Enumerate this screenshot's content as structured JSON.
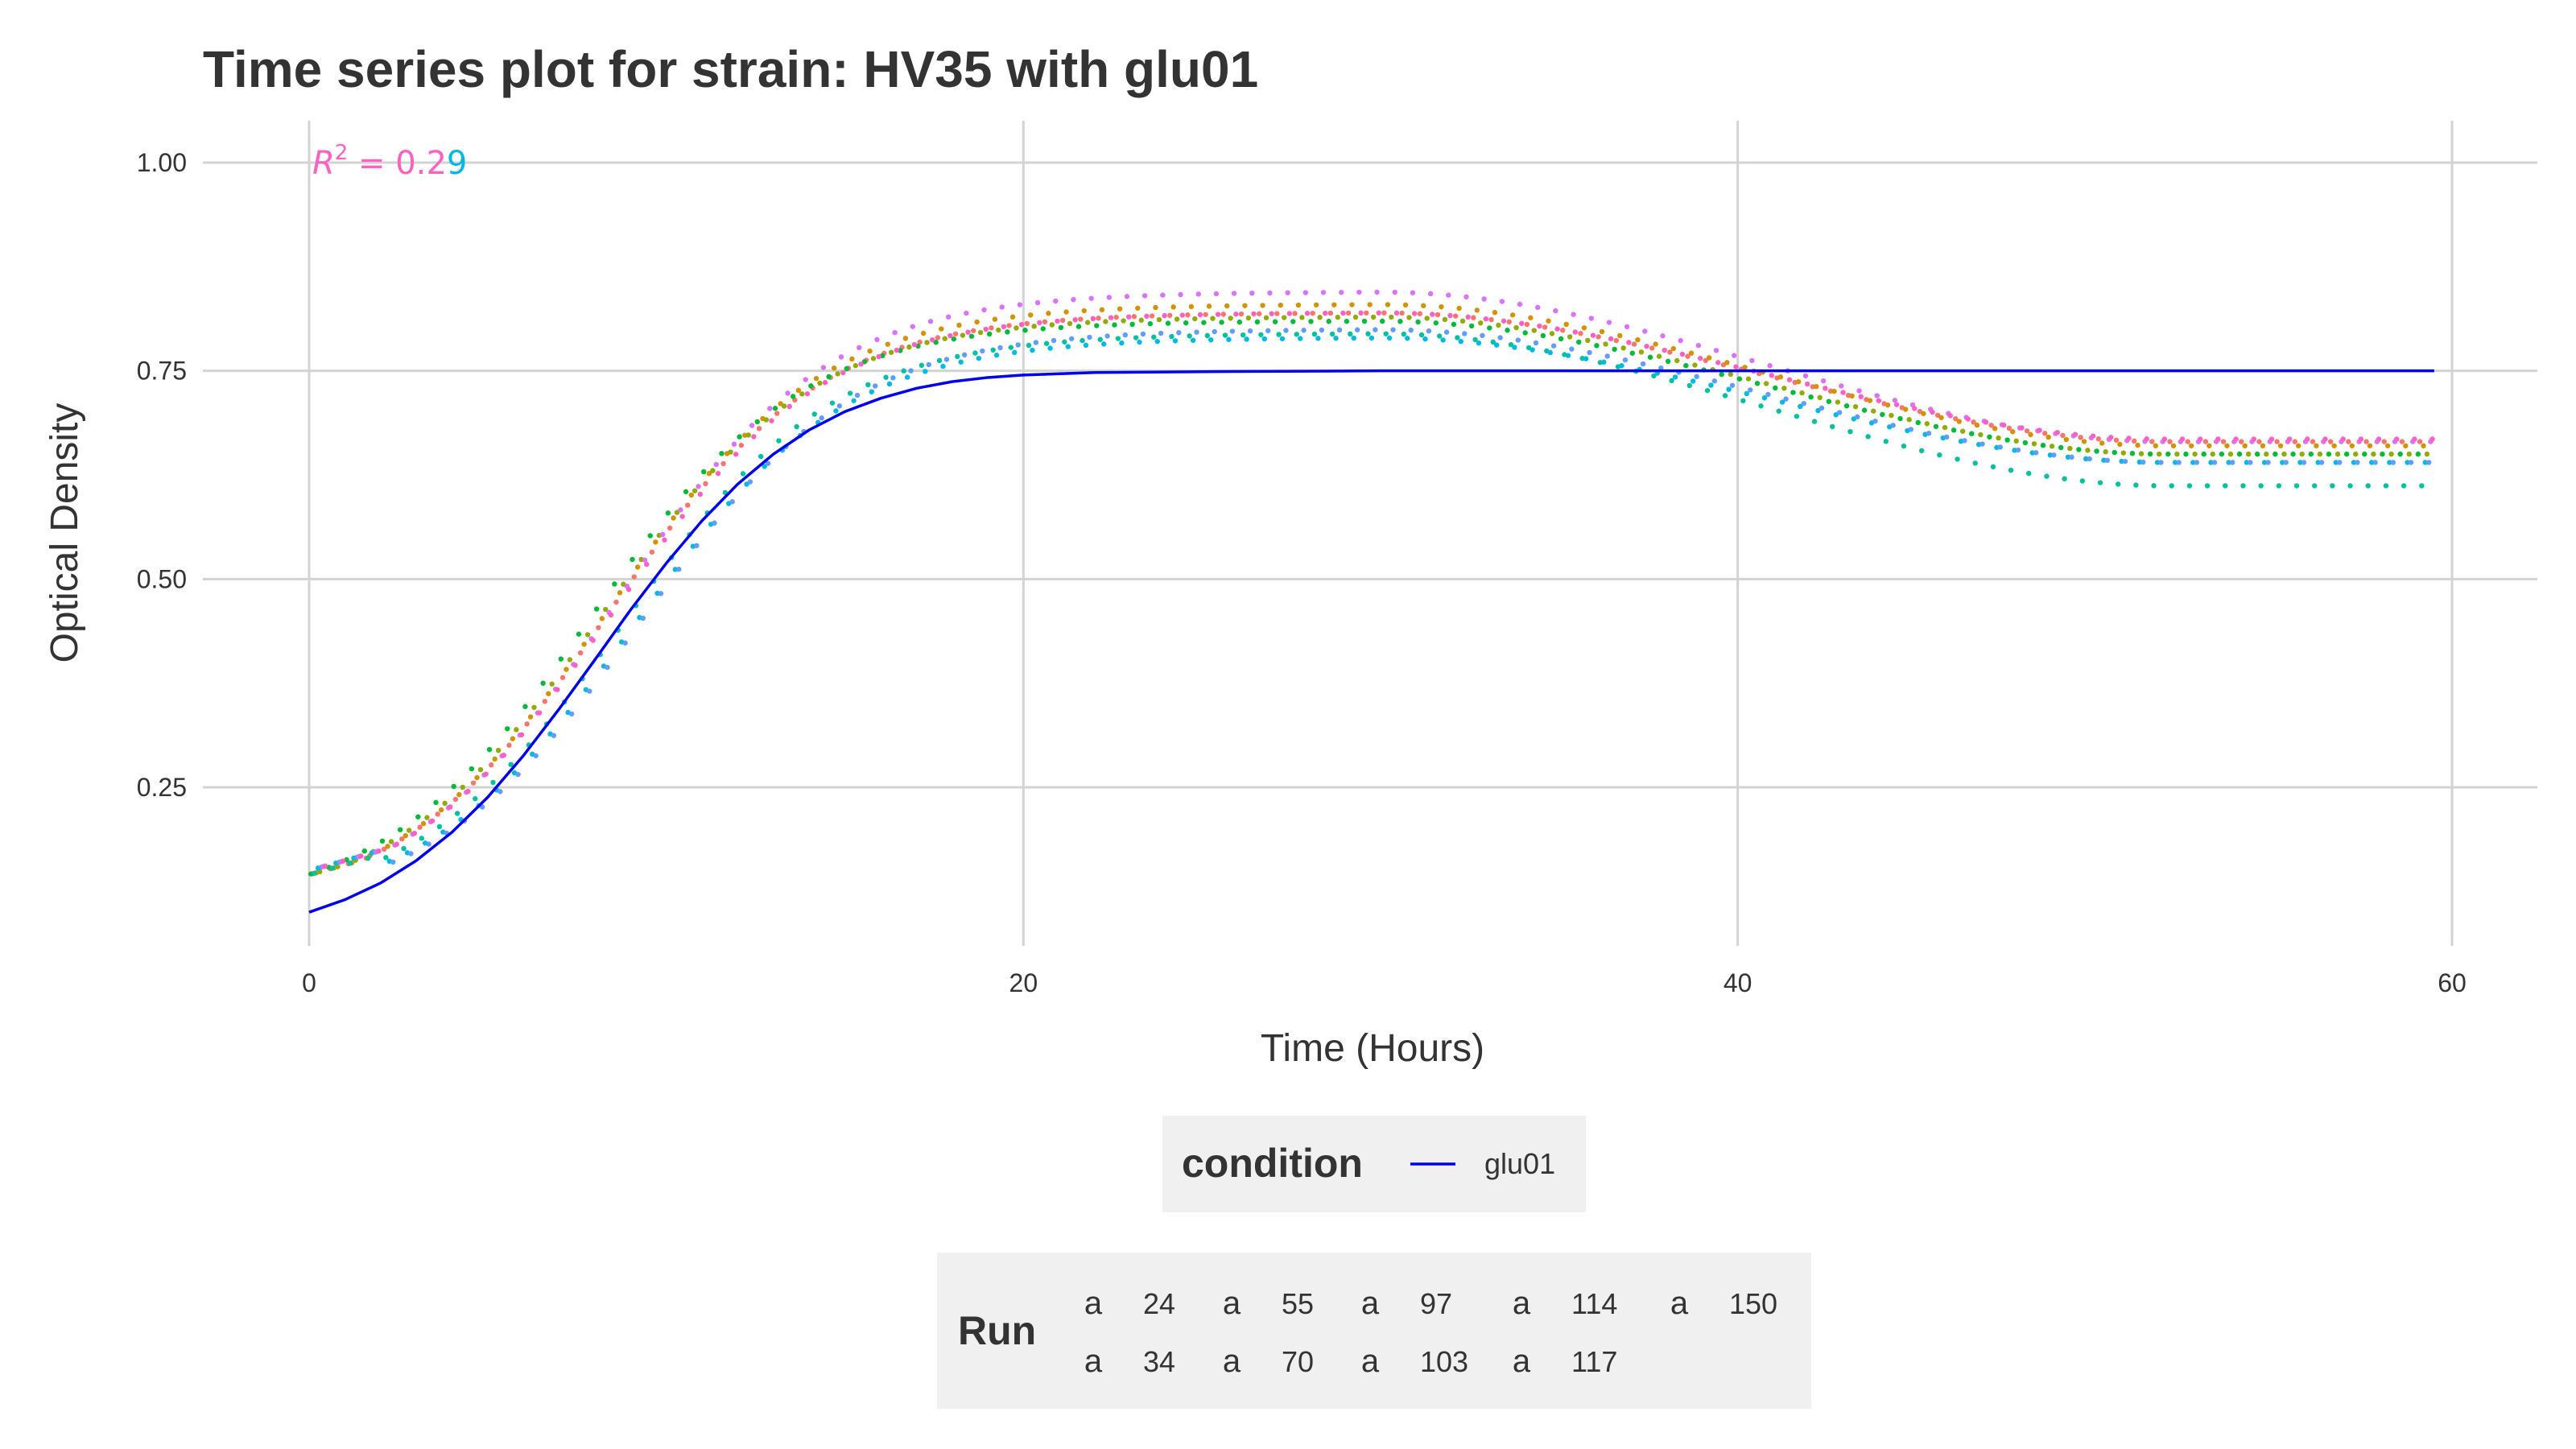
{
  "chart_data": {
    "type": "scatter",
    "title": "Time series plot for strain: HV35 with glu01",
    "xlabel": "Time (Hours)",
    "ylabel": "Optical Density",
    "xlim": [
      -3,
      62
    ],
    "ylim": [
      0.04,
      1.045
    ],
    "x_ticks": [
      0,
      20,
      40,
      60
    ],
    "y_ticks": [
      0.25,
      0.5,
      0.75,
      1.0
    ],
    "x_tick_labels": [
      "0",
      "20",
      "40",
      "60"
    ],
    "y_tick_labels": [
      "0.25",
      "0.50",
      "0.75",
      "1.00"
    ],
    "grid": true,
    "legend_position": "bottom",
    "annotation": {
      "text": "R² = 0.29",
      "label_r": "R",
      "label_sup": "2",
      "label_eq": " = 0.2",
      "label_digit": "9",
      "x": 0,
      "y": 1.0
    },
    "fit_line": {
      "name": "glu01",
      "color": "#0000EE",
      "points": [
        [
          0,
          0.1
        ],
        [
          1,
          0.115
        ],
        [
          2,
          0.135
        ],
        [
          3,
          0.162
        ],
        [
          4,
          0.196
        ],
        [
          5,
          0.238
        ],
        [
          6,
          0.288
        ],
        [
          7,
          0.344
        ],
        [
          8,
          0.403
        ],
        [
          9,
          0.463
        ],
        [
          10,
          0.519
        ],
        [
          11,
          0.57
        ],
        [
          12,
          0.614
        ],
        [
          13,
          0.65
        ],
        [
          14,
          0.679
        ],
        [
          15,
          0.701
        ],
        [
          16,
          0.717
        ],
        [
          17,
          0.729
        ],
        [
          18,
          0.737
        ],
        [
          19,
          0.742
        ],
        [
          20,
          0.745
        ],
        [
          22,
          0.748
        ],
        [
          25,
          0.749
        ],
        [
          30,
          0.75
        ],
        [
          40,
          0.75
        ],
        [
          50,
          0.75
        ],
        [
          59.5,
          0.75
        ]
      ]
    },
    "runs": [
      {
        "name": "24",
        "color": "#F8766D",
        "t_offset": 0.1,
        "peak": 0.82,
        "end": 0.665,
        "lag": 0.2
      },
      {
        "name": "34",
        "color": "#D39200",
        "t_offset": 0.2,
        "peak": 0.83,
        "end": 0.66,
        "lag": 0.2
      },
      {
        "name": "55",
        "color": "#93AA00",
        "t_offset": 0.3,
        "peak": 0.815,
        "end": 0.65,
        "lag": 0.0
      },
      {
        "name": "70",
        "color": "#00BA38",
        "t_offset": 0.05,
        "peak": 0.81,
        "end": 0.65,
        "lag": -0.3
      },
      {
        "name": "97",
        "color": "#00C19F",
        "t_offset": 0.15,
        "peak": 0.795,
        "end": 0.612,
        "lag": 0.6
      },
      {
        "name": "103",
        "color": "#00B9E3",
        "t_offset": 0.25,
        "peak": 0.79,
        "end": 0.64,
        "lag": 0.9
      },
      {
        "name": "114",
        "color": "#619CFF",
        "t_offset": 0.35,
        "peak": 0.8,
        "end": 0.64,
        "lag": 1.1
      },
      {
        "name": "117",
        "color": "#DB72FB",
        "t_offset": 0.4,
        "peak": 0.845,
        "end": 0.665,
        "lag": 0.4
      },
      {
        "name": "150",
        "color": "#FF61C3",
        "t_offset": 0.45,
        "peak": 0.82,
        "end": 0.668,
        "lag": 0.3
      }
    ]
  },
  "legend": {
    "condition_title": "condition",
    "condition_items": [
      {
        "label": "glu01",
        "color": "#0000EE"
      }
    ],
    "run_title": "Run",
    "run_key_glyph": "a"
  }
}
